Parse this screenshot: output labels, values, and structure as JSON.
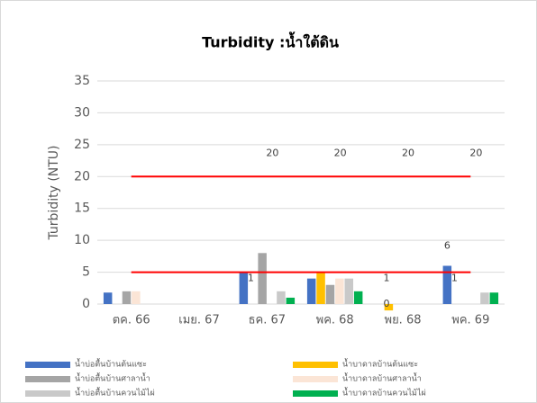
{
  "chart_data": {
    "type": "bar",
    "title": "Turbidity :น้ำใต้ดิน",
    "y_label": "Turbidity (NTU)",
    "categories": [
      "ตค. 66",
      "เมย. 67",
      "ธค. 67",
      "พค. 68",
      "พย. 68",
      "พค. 69"
    ],
    "ylim": [
      0,
      35
    ],
    "yticks": [
      0,
      5,
      10,
      15,
      20,
      25,
      30,
      35
    ],
    "grid": true,
    "legend": "bottom",
    "series": [
      {
        "name": "น้ำบ่อตื้นบ้านต้นแซะ",
        "color": "#4472c4",
        "values": [
          1.8,
          null,
          5,
          4,
          null,
          6
        ],
        "value_labels": [
          null,
          null,
          null,
          null,
          null,
          "6"
        ]
      },
      {
        "name": "น้ำบาดาลบ้านต้นแซะ",
        "color": "#ffc000",
        "values": [
          null,
          null,
          null,
          5,
          -1,
          null
        ]
      },
      {
        "name": "น้ำบ่อตื้นบ้านศาลาน้ำ",
        "color": "#a5a5a5",
        "values": [
          2,
          null,
          8,
          3,
          null,
          null
        ]
      },
      {
        "name": "น้ำบาดาลบ้านศาลาน้ำ",
        "color": "#fbe5d6",
        "values": [
          2,
          null,
          null,
          4,
          null,
          null
        ]
      },
      {
        "name": "น้ำบ่อตื้นบ้านควนไม้ไผ่",
        "color": "#c9c9c9",
        "values": [
          null,
          null,
          2,
          4,
          null,
          1.8
        ]
      },
      {
        "name": "น้ำบาดาลบ้านควนไม้ไผ่",
        "color": "#00b050",
        "values": [
          null,
          null,
          1,
          2,
          null,
          1.8
        ]
      }
    ],
    "lines": [
      {
        "color": "#ff0000",
        "values": [
          20,
          20,
          20,
          20,
          20,
          20
        ],
        "value_labels": [
          null,
          null,
          "20",
          "20",
          "20",
          "20"
        ]
      },
      {
        "color": "#ff0000",
        "values": [
          5,
          5,
          5,
          5,
          5,
          5
        ]
      }
    ],
    "annotations": [
      {
        "text": "1",
        "category": 2,
        "y": 4
      },
      {
        "text": "1",
        "category": 4,
        "y": 4
      },
      {
        "text": "0",
        "category": 4,
        "y": 0
      },
      {
        "text": "1",
        "category": 5,
        "y": 4
      }
    ]
  }
}
